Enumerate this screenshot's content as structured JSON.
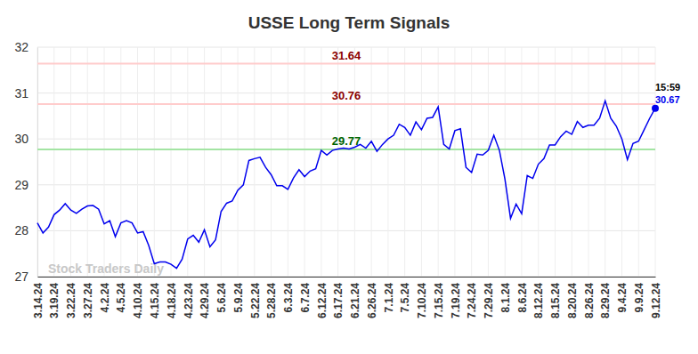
{
  "chart_data": {
    "type": "line",
    "title": "USSE Long Term Signals",
    "watermark": "Stock Traders Daily",
    "categories": [
      "3.14.24",
      null,
      null,
      "3.19.24",
      null,
      null,
      "3.22.24",
      null,
      null,
      "3.27.24",
      null,
      null,
      "4.2.24",
      null,
      null,
      "4.5.24",
      null,
      null,
      "4.10.24",
      null,
      null,
      "4.15.24",
      null,
      null,
      "4.18.24",
      null,
      null,
      "4.23.24",
      null,
      null,
      "4.29.24",
      null,
      null,
      "5.6.24",
      null,
      null,
      "5.9.24",
      null,
      null,
      "5.22.24",
      null,
      null,
      "5.28.24",
      null,
      null,
      "6.3.24",
      null,
      null,
      "6.7.24",
      null,
      null,
      "6.12.24",
      null,
      null,
      "6.17.24",
      null,
      null,
      "6.21.24",
      null,
      null,
      "6.26.24",
      null,
      null,
      "7.1.24",
      null,
      null,
      "7.5.24",
      null,
      null,
      "7.10.24",
      null,
      null,
      "7.15.24",
      null,
      null,
      "7.19.24",
      null,
      null,
      "7.24.24",
      null,
      null,
      "7.29.24",
      null,
      null,
      "8.1.24",
      null,
      null,
      "8.6.24",
      null,
      null,
      "8.12.24",
      null,
      null,
      "8.15.24",
      null,
      null,
      "8.20.24",
      null,
      null,
      "8.26.24",
      null,
      null,
      "8.29.24",
      null,
      null,
      "9.4.24",
      null,
      null,
      "9.9.24",
      null,
      null,
      "9.12.24"
    ],
    "series": [
      {
        "name": "USSE",
        "color": "#0000ee",
        "values": [
          28.17,
          27.95,
          28.08,
          28.35,
          28.45,
          28.59,
          28.45,
          28.38,
          28.47,
          28.54,
          28.55,
          28.47,
          28.15,
          28.22,
          27.87,
          28.17,
          28.22,
          28.17,
          27.95,
          27.98,
          27.68,
          27.28,
          27.32,
          27.32,
          27.27,
          27.18,
          27.38,
          27.82,
          27.9,
          27.75,
          28.02,
          27.65,
          27.8,
          28.42,
          28.6,
          28.65,
          28.88,
          29.0,
          29.53,
          29.57,
          29.6,
          29.38,
          29.22,
          28.98,
          28.98,
          28.9,
          29.15,
          29.33,
          29.18,
          29.3,
          29.35,
          29.75,
          29.65,
          29.75,
          29.78,
          29.8,
          29.78,
          29.82,
          29.88,
          29.8,
          29.95,
          29.73,
          29.88,
          30.0,
          30.08,
          30.32,
          30.25,
          30.08,
          30.37,
          30.2,
          30.45,
          30.47,
          30.7,
          29.88,
          29.78,
          30.18,
          30.22,
          29.38,
          29.27,
          29.67,
          29.65,
          29.75,
          30.08,
          29.75,
          29.12,
          28.27,
          28.58,
          28.37,
          29.2,
          29.14,
          29.45,
          29.57,
          29.87,
          29.87,
          30.05,
          30.17,
          30.1,
          30.38,
          30.25,
          30.3,
          30.3,
          30.45,
          30.83,
          30.45,
          30.28,
          30.0,
          29.55,
          29.9,
          29.95,
          30.2,
          30.45,
          30.67
        ]
      }
    ],
    "reference_lines": [
      {
        "value": 31.64,
        "color": "#ffcccc",
        "label_color": "#8b0000"
      },
      {
        "value": 30.76,
        "color": "#ffcccc",
        "label_color": "#8b0000"
      },
      {
        "value": 29.77,
        "color": "#a3e4a3",
        "label_color": "#006400"
      }
    ],
    "last_time": "15:59",
    "ylim": [
      27,
      32
    ],
    "yticks": [
      27,
      28,
      29,
      30,
      31,
      32
    ],
    "grid": true
  }
}
